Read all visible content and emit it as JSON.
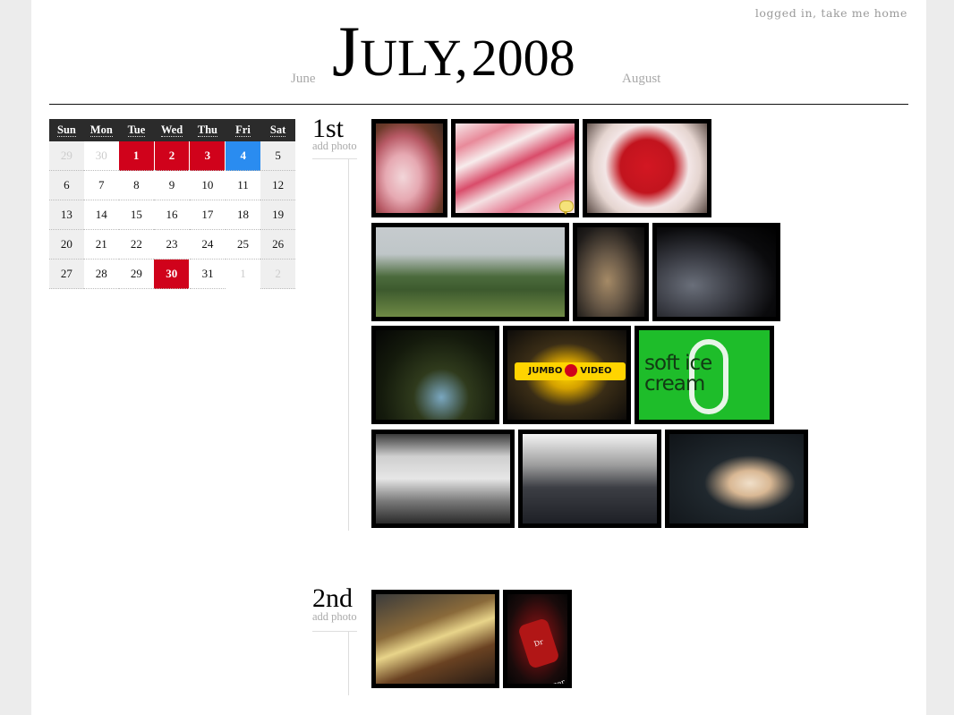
{
  "header": {
    "home_link": "logged in, take me home",
    "prev_month": "June",
    "next_month": "August",
    "title_cap": "J",
    "title_rest": "ULY",
    "title_sep": ",",
    "title_year": "2008"
  },
  "calendar": {
    "weekdays": [
      "Sun",
      "Mon",
      "Tue",
      "Wed",
      "Thu",
      "Fri",
      "Sat"
    ],
    "weeks": [
      [
        "29",
        "30",
        "1",
        "2",
        "3",
        "4",
        "5"
      ],
      [
        "6",
        "7",
        "8",
        "9",
        "10",
        "11",
        "12"
      ],
      [
        "13",
        "14",
        "15",
        "16",
        "17",
        "18",
        "19"
      ],
      [
        "20",
        "21",
        "22",
        "23",
        "24",
        "25",
        "26"
      ],
      [
        "27",
        "28",
        "29",
        "30",
        "31",
        "1",
        "2"
      ]
    ],
    "days_with_photos": [
      "1",
      "2",
      "3",
      "30"
    ],
    "today": "4",
    "colors": {
      "photo_day": "#d0021b",
      "today": "#2a8cf0",
      "header": "#2b2b2b"
    }
  },
  "days": [
    {
      "label": "1st",
      "add_photo": "add photo",
      "photos": [
        {
          "name": "cake-swirl-photo",
          "has_comment": false
        },
        {
          "name": "pink-swirl-photo",
          "has_comment": true
        },
        {
          "name": "strawberry-cake-photo",
          "has_comment": false
        },
        {
          "name": "street-party-photo",
          "has_comment": false
        },
        {
          "name": "girl-sitting-photo",
          "has_comment": false
        },
        {
          "name": "night-crowd-photo",
          "has_comment": false
        },
        {
          "name": "feet-on-grass-photo",
          "has_comment": false
        },
        {
          "name": "jumbo-video-photo",
          "has_comment": false
        },
        {
          "name": "soft-ice-cream-photo",
          "has_comment": false
        },
        {
          "name": "white-car-photo",
          "has_comment": false
        },
        {
          "name": "scratched-bumper-photo",
          "has_comment": false
        },
        {
          "name": "arm-bandage-photo",
          "has_comment": false
        }
      ],
      "sign_texts": {
        "jumbo_left": "JUMBO",
        "jumbo_right": "VIDEO",
        "green_sign": "soft ice cream"
      }
    },
    {
      "label": "2nd",
      "add_photo": "add photo",
      "photos": [
        {
          "name": "messy-desk-photo",
          "has_comment": false
        },
        {
          "name": "dr-pepper-can-photo",
          "has_comment": false
        }
      ],
      "sign_texts": {
        "can": "Dr Pepper"
      }
    }
  ]
}
